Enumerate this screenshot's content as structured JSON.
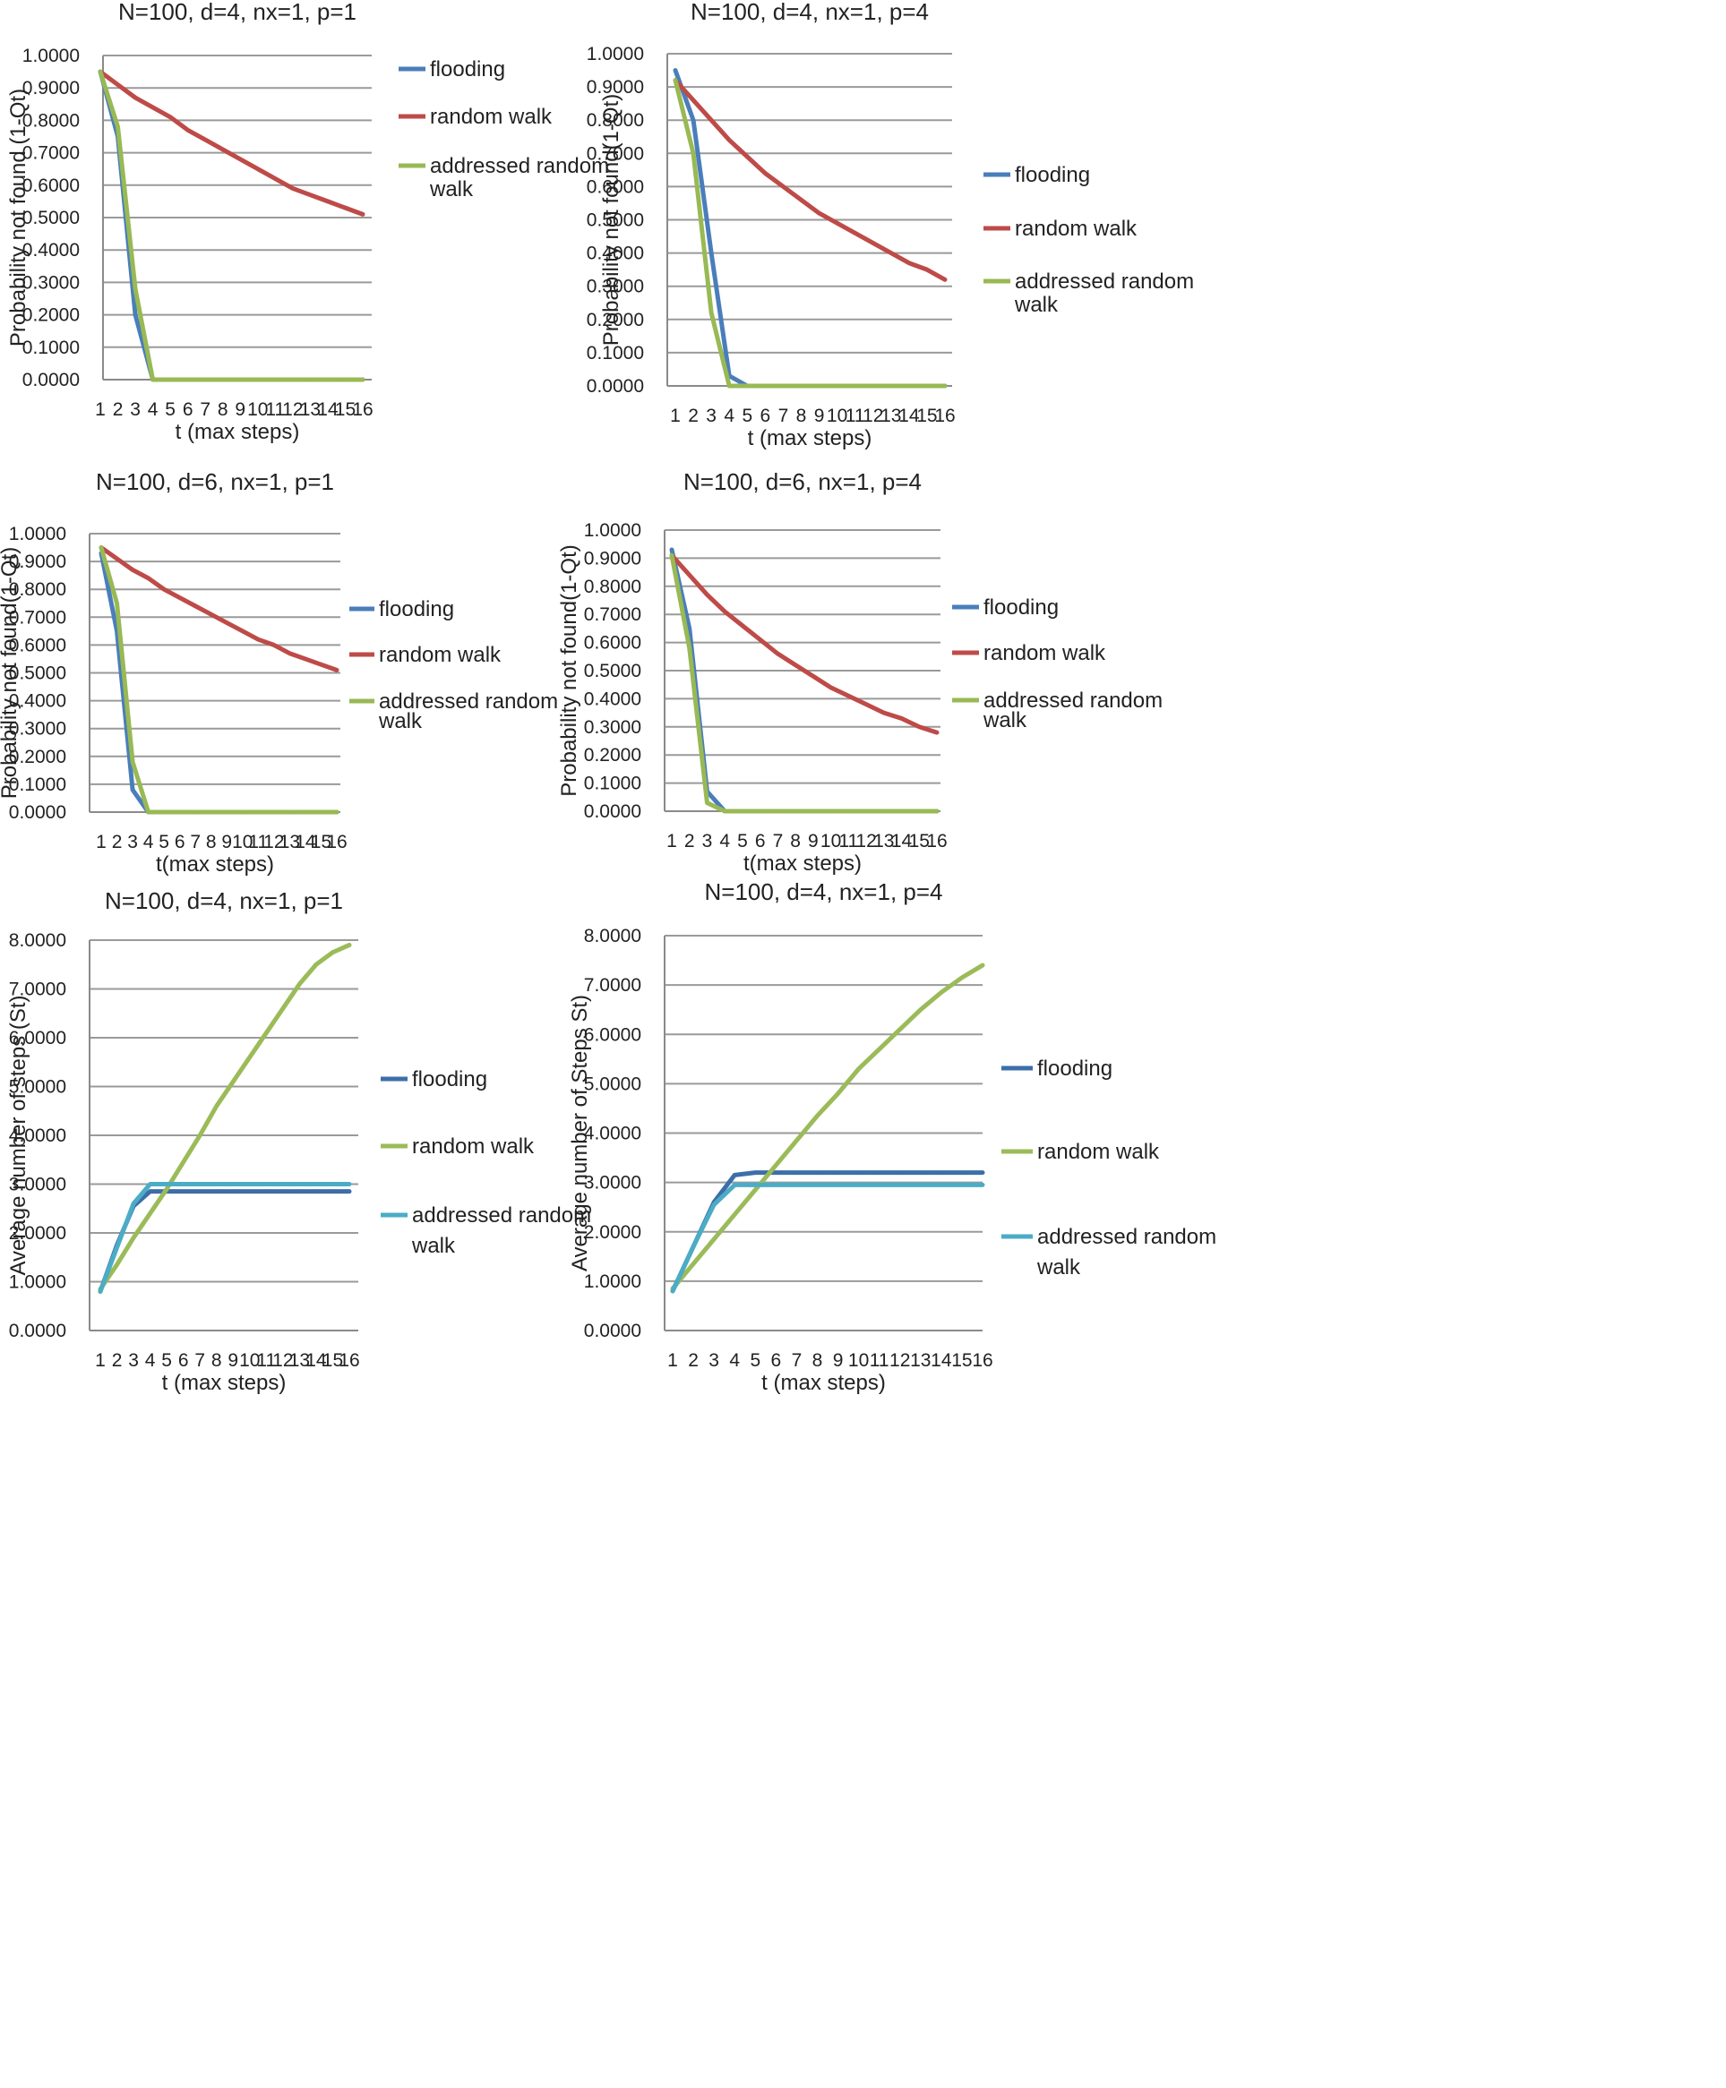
{
  "chart_data": [
    {
      "type": "line",
      "title": "N=100, d=4, nx=1, p=1",
      "xlabel": "t (max steps)",
      "ylabel": "Probability not found (1-Qt)",
      "categories": [
        "1",
        "2",
        "3",
        "4",
        "5",
        "6",
        "7",
        "8",
        "9",
        "10",
        "11",
        "12",
        "13",
        "14",
        "15",
        "16"
      ],
      "ylim": [
        0,
        1
      ],
      "ytick_labels": [
        "0.0000",
        "0.1000",
        "0.2000",
        "0.3000",
        "0.4000",
        "0.5000",
        "0.6000",
        "0.7000",
        "0.8000",
        "0.9000",
        "1.0000"
      ],
      "grid": true,
      "legend": "right",
      "series": [
        {
          "name": "flooding",
          "color": "#4a7ebb",
          "values": [
            0.95,
            0.75,
            0.2,
            0,
            0,
            0,
            0,
            0,
            0,
            0,
            0,
            0,
            0,
            0,
            0,
            0
          ]
        },
        {
          "name": "random walk",
          "color": "#be4b48",
          "values": [
            0.95,
            0.91,
            0.87,
            0.84,
            0.81,
            0.77,
            0.74,
            0.71,
            0.68,
            0.65,
            0.62,
            0.59,
            0.57,
            0.55,
            0.53,
            0.51
          ]
        },
        {
          "name": "addressed random walk",
          "color": "#98b954",
          "values": [
            0.95,
            0.78,
            0.28,
            0,
            0,
            0,
            0,
            0,
            0,
            0,
            0,
            0,
            0,
            0,
            0,
            0
          ]
        }
      ]
    },
    {
      "type": "line",
      "title": "N=100, d=4, nx=1, p=4",
      "xlabel": "t (max steps)",
      "ylabel": "Probability not found(1-Qt)",
      "categories": [
        "1",
        "2",
        "3",
        "4",
        "5",
        "6",
        "7",
        "8",
        "9",
        "10",
        "11",
        "12",
        "13",
        "14",
        "15",
        "16"
      ],
      "ylim": [
        0,
        1
      ],
      "ytick_labels": [
        "0.0000",
        "0.1000",
        "0.2000",
        "0.3000",
        "0.4000",
        "0.5000",
        "0.6000",
        "0.7000",
        "0.8000",
        "0.9000",
        "1.0000"
      ],
      "grid": true,
      "legend": "right",
      "series": [
        {
          "name": "flooding",
          "color": "#4a7ebb",
          "values": [
            0.95,
            0.8,
            0.4,
            0.03,
            0,
            0,
            0,
            0,
            0,
            0,
            0,
            0,
            0,
            0,
            0,
            0
          ]
        },
        {
          "name": "random walk",
          "color": "#be4b48",
          "values": [
            0.92,
            0.86,
            0.8,
            0.74,
            0.69,
            0.64,
            0.6,
            0.56,
            0.52,
            0.49,
            0.46,
            0.43,
            0.4,
            0.37,
            0.35,
            0.32
          ]
        },
        {
          "name": "addressed random walk",
          "color": "#98b954",
          "values": [
            0.92,
            0.7,
            0.22,
            0,
            0,
            0,
            0,
            0,
            0,
            0,
            0,
            0,
            0,
            0,
            0,
            0
          ]
        }
      ]
    },
    {
      "type": "line",
      "title": "N=100, d=6, nx=1, p=1",
      "xlabel": "t(max steps)",
      "ylabel": "Probability not found(1-Qt)",
      "categories": [
        "1",
        "2",
        "3",
        "4",
        "5",
        "6",
        "7",
        "8",
        "9",
        "10",
        "11",
        "12",
        "13",
        "14",
        "15",
        "16"
      ],
      "ylim": [
        0,
        1
      ],
      "ytick_labels": [
        "0.0000",
        "0.1000",
        "0.2000",
        "0.3000",
        "0.4000",
        "0.5000",
        "0.6000",
        "0.7000",
        "0.8000",
        "0.9000",
        "1.0000"
      ],
      "grid": true,
      "legend": "right",
      "series": [
        {
          "name": "flooding",
          "color": "#4a7ebb",
          "values": [
            0.93,
            0.65,
            0.08,
            0,
            0,
            0,
            0,
            0,
            0,
            0,
            0,
            0,
            0,
            0,
            0,
            0
          ]
        },
        {
          "name": "random walk",
          "color": "#be4b48",
          "values": [
            0.95,
            0.91,
            0.87,
            0.84,
            0.8,
            0.77,
            0.74,
            0.71,
            0.68,
            0.65,
            0.62,
            0.6,
            0.57,
            0.55,
            0.53,
            0.51
          ]
        },
        {
          "name": "addressed random walk",
          "color": "#98b954",
          "values": [
            0.95,
            0.75,
            0.18,
            0,
            0,
            0,
            0,
            0,
            0,
            0,
            0,
            0,
            0,
            0,
            0,
            0
          ]
        }
      ]
    },
    {
      "type": "line",
      "title": "N=100, d=6, nx=1, p=4",
      "xlabel": "t(max steps)",
      "ylabel": "Probability not found(1-Qt)",
      "categories": [
        "1",
        "2",
        "3",
        "4",
        "5",
        "6",
        "7",
        "8",
        "9",
        "10",
        "11",
        "12",
        "13",
        "14",
        "15",
        "16"
      ],
      "ylim": [
        0,
        1
      ],
      "ytick_labels": [
        "0.0000",
        "0.1000",
        "0.2000",
        "0.3000",
        "0.4000",
        "0.5000",
        "0.6000",
        "0.7000",
        "0.8000",
        "0.9000",
        "1.0000"
      ],
      "grid": true,
      "legend": "right",
      "series": [
        {
          "name": "flooding",
          "color": "#4a7ebb",
          "values": [
            0.93,
            0.65,
            0.07,
            0,
            0,
            0,
            0,
            0,
            0,
            0,
            0,
            0,
            0,
            0,
            0,
            0
          ]
        },
        {
          "name": "random walk",
          "color": "#be4b48",
          "values": [
            0.91,
            0.84,
            0.77,
            0.71,
            0.66,
            0.61,
            0.56,
            0.52,
            0.48,
            0.44,
            0.41,
            0.38,
            0.35,
            0.33,
            0.3,
            0.28
          ]
        },
        {
          "name": "addressed random walk",
          "color": "#98b954",
          "values": [
            0.91,
            0.58,
            0.03,
            0,
            0,
            0,
            0,
            0,
            0,
            0,
            0,
            0,
            0,
            0,
            0,
            0
          ]
        }
      ]
    },
    {
      "type": "line",
      "title": "N=100, d=4, nx=1, p=1",
      "xlabel": "t (max steps)",
      "ylabel": "Average number of steps (St)",
      "categories": [
        "1",
        "2",
        "3",
        "4",
        "5",
        "6",
        "7",
        "8",
        "9",
        "10",
        "11",
        "12",
        "13",
        "14",
        "15",
        "16"
      ],
      "ylim": [
        0,
        8
      ],
      "ytick_labels": [
        "0.0000",
        "1.0000",
        "2.0000",
        "3.0000",
        "4.0000",
        "5.0000",
        "6.0000",
        "7.0000",
        "8.0000"
      ],
      "grid": true,
      "legend": "right",
      "series": [
        {
          "name": "flooding",
          "color": "#3d6ea8",
          "values": [
            0.8,
            1.75,
            2.55,
            2.85,
            2.85,
            2.85,
            2.85,
            2.85,
            2.85,
            2.85,
            2.85,
            2.85,
            2.85,
            2.85,
            2.85,
            2.85
          ]
        },
        {
          "name": "random walk",
          "color": "#9bbb59",
          "values": [
            0.85,
            1.35,
            1.9,
            2.4,
            2.9,
            3.45,
            4.0,
            4.6,
            5.1,
            5.6,
            6.1,
            6.6,
            7.1,
            7.5,
            7.75,
            7.9
          ]
        },
        {
          "name": "addressed random walk",
          "color": "#4bacc6",
          "values": [
            0.8,
            1.7,
            2.6,
            3.0,
            3.0,
            3.0,
            3.0,
            3.0,
            3.0,
            3.0,
            3.0,
            3.0,
            3.0,
            3.0,
            3.0,
            3.0
          ]
        }
      ]
    },
    {
      "type": "line",
      "title": "N=100, d=4, nx=1, p=4",
      "xlabel": "t (max steps)",
      "ylabel": "Average number of Steps St)",
      "categories": [
        "1",
        "2",
        "3",
        "4",
        "5",
        "6",
        "7",
        "8",
        "9",
        "10",
        "11",
        "12",
        "13",
        "14",
        "15",
        "16"
      ],
      "ylim": [
        0,
        8
      ],
      "ytick_labels": [
        "0.0000",
        "1.0000",
        "2.0000",
        "3.0000",
        "4.0000",
        "5.0000",
        "6.0000",
        "7.0000",
        "8.0000"
      ],
      "grid": true,
      "legend": "right",
      "series": [
        {
          "name": "flooding",
          "color": "#3d6ea8",
          "values": [
            0.8,
            1.7,
            2.6,
            3.15,
            3.2,
            3.2,
            3.2,
            3.2,
            3.2,
            3.2,
            3.2,
            3.2,
            3.2,
            3.2,
            3.2,
            3.2
          ]
        },
        {
          "name": "random walk",
          "color": "#9bbb59",
          "values": [
            0.85,
            1.35,
            1.85,
            2.35,
            2.85,
            3.35,
            3.85,
            4.35,
            4.8,
            5.3,
            5.7,
            6.1,
            6.5,
            6.85,
            7.15,
            7.4
          ]
        },
        {
          "name": "addressed random walk",
          "color": "#4bacc6",
          "values": [
            0.8,
            1.7,
            2.55,
            2.95,
            2.95,
            2.95,
            2.95,
            2.95,
            2.95,
            2.95,
            2.95,
            2.95,
            2.95,
            2.95,
            2.95,
            2.95
          ]
        }
      ]
    }
  ]
}
